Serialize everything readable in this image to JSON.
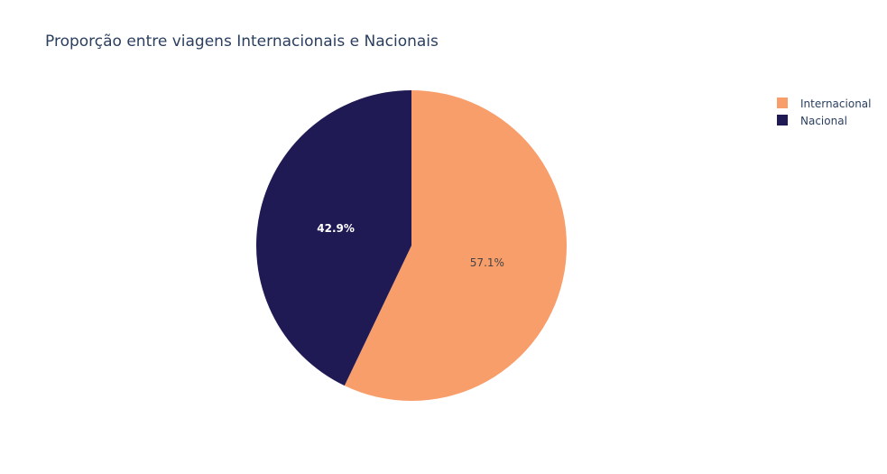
{
  "chart_data": {
    "type": "pie",
    "title": "Proporção entre viagens Internacionais e Nacionais",
    "categories": [
      "Internacional",
      "Nacional"
    ],
    "values": [
      57.1,
      42.9
    ],
    "labels": [
      "57.1%",
      "42.9%"
    ],
    "colors": [
      "#f89e6b",
      "#1f1a54"
    ],
    "label_colors": [
      "#444444",
      "#ffffff"
    ],
    "legend": {
      "placement": "top-right",
      "items": [
        {
          "label": "Internacional",
          "color": "#f89e6b"
        },
        {
          "label": "Nacional",
          "color": "#1f1a54"
        }
      ]
    }
  }
}
